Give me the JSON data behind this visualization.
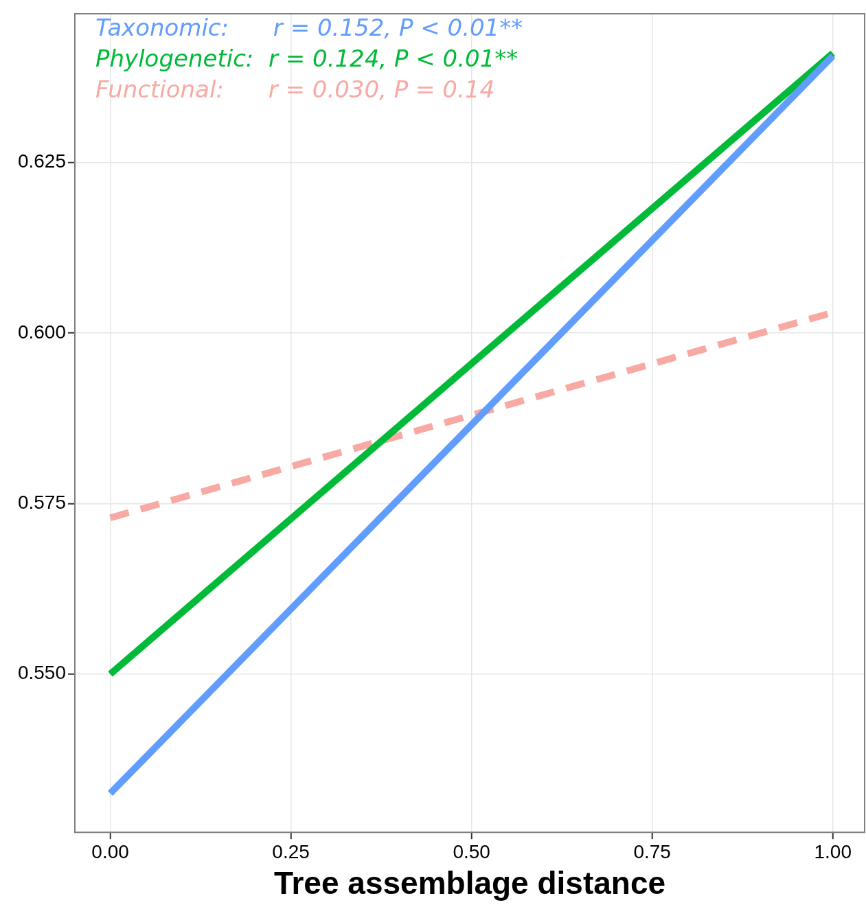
{
  "chart_data": {
    "type": "line",
    "xlabel": "Tree assemblage distance",
    "x": [
      0,
      1
    ],
    "series": [
      {
        "color": "#619cff",
        "values": [
          0.5325,
          0.6406
        ],
        "line_style": "solid"
      },
      {
        "color": "#00ba38",
        "values": [
          0.55,
          0.641
        ],
        "line_style": "solid"
      },
      {
        "color": "#f8a9a3",
        "values": [
          0.5729,
          0.603
        ],
        "line_style": "dashed"
      }
    ],
    "annotations": [
      "Taxonomic:      r = 0.152, P < 0.01**",
      "Phylogenetic:  r = 0.124, P < 0.01**",
      "Functional:      r = 0.030, P = 0.14"
    ],
    "xlim": [
      -0.049,
      1.044
    ],
    "ylim": [
      0.5268,
      0.6468
    ],
    "xticks": [
      {
        "value": 0,
        "label": "0.00"
      },
      {
        "value": 0.25,
        "label": "0.25"
      },
      {
        "value": 0.5,
        "label": "0.50"
      },
      {
        "value": 0.75,
        "label": "0.75"
      },
      {
        "value": 1,
        "label": "1.00"
      }
    ],
    "yticks": [
      {
        "value": 0.55,
        "label": "0.550"
      },
      {
        "value": 0.575,
        "label": "0.575"
      },
      {
        "value": 0.6,
        "label": "0.600"
      },
      {
        "value": 0.625,
        "label": "0.625"
      }
    ],
    "grid": true,
    "legend": false,
    "marker": "none"
  }
}
